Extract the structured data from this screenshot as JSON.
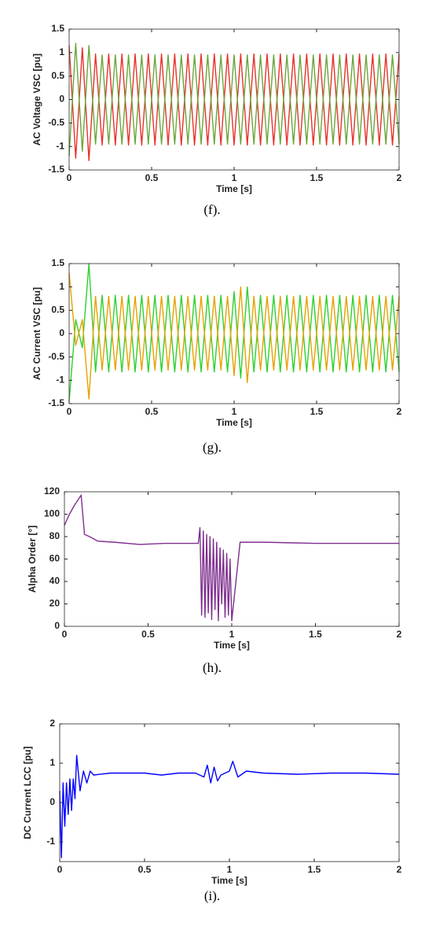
{
  "chart_data": [
    {
      "type": "line",
      "caption": "(f).",
      "xlabel": "Time [s]",
      "ylabel": "AC Voltage VSC [pu]",
      "xlim": [
        0,
        2
      ],
      "xticks": [
        0,
        0.5,
        1,
        1.5,
        2
      ],
      "ylim": [
        -1.5,
        1.5
      ],
      "yticks": [
        -1.5,
        -1,
        -0.5,
        0,
        0.5,
        1,
        1.5
      ],
      "x": [
        0,
        0.04,
        0.08,
        0.12,
        0.16,
        0.2,
        0.24,
        0.28,
        0.32,
        0.36,
        0.4,
        0.44,
        0.48,
        0.52,
        0.56,
        0.6,
        0.64,
        0.68,
        0.72,
        0.76,
        0.8,
        0.84,
        0.88,
        0.92,
        0.96,
        1,
        1.04,
        1.08,
        1.12,
        1.16,
        1.2,
        1.24,
        1.28,
        1.32,
        1.36,
        1.4,
        1.44,
        1.48,
        1.52,
        1.56,
        1.6,
        1.64,
        1.68,
        1.72,
        1.76,
        1.8,
        1.84,
        1.88,
        1.92,
        1.96,
        2
      ],
      "series": [
        {
          "color": "#e8312a",
          "values": [
            1.15,
            -1.25,
            1.1,
            -1.3,
            0.97,
            -0.97,
            0.97,
            -0.97,
            0.97,
            -0.97,
            0.97,
            -0.97,
            0.97,
            -0.97,
            0.97,
            -0.97,
            0.97,
            -0.97,
            0.97,
            -0.97,
            0.97,
            -0.97,
            0.97,
            -0.97,
            0.97,
            -0.97,
            0.97,
            -0.97,
            0.97,
            -0.97,
            0.97,
            -0.97,
            0.97,
            -0.97,
            0.97,
            -0.97,
            0.97,
            -0.97,
            0.97,
            -0.97,
            0.97,
            -0.97,
            0.97,
            -0.97,
            0.97,
            -0.97,
            0.97,
            -0.97,
            0.97,
            -0.97,
            0.97
          ]
        },
        {
          "color": "#6aa63a",
          "values": [
            -1.2,
            1.2,
            -1.1,
            1.15,
            -0.95,
            0.95,
            -0.95,
            0.95,
            -0.95,
            0.95,
            -0.95,
            0.95,
            -0.95,
            0.95,
            -0.95,
            0.95,
            -0.95,
            0.95,
            -0.95,
            0.95,
            -0.95,
            0.95,
            -0.95,
            0.95,
            -0.95,
            0.95,
            -0.95,
            0.95,
            -0.95,
            0.95,
            -0.95,
            0.95,
            -0.95,
            0.95,
            -0.95,
            0.95,
            -0.95,
            0.95,
            -0.95,
            0.95,
            -0.95,
            0.95,
            -0.95,
            0.95,
            -0.95,
            0.95,
            -0.95,
            0.95,
            -0.95,
            0.95,
            -0.95
          ]
        }
      ]
    },
    {
      "type": "line",
      "caption": "(g).",
      "xlabel": "Time [s]",
      "ylabel": "AC Current VSC [pu]",
      "xlim": [
        0,
        2
      ],
      "xticks": [
        0,
        0.5,
        1,
        1.5,
        2
      ],
      "ylim": [
        -1.5,
        1.5
      ],
      "yticks": [
        -1.5,
        -1,
        -0.5,
        0,
        0.5,
        1,
        1.5
      ],
      "x": [
        0,
        0.04,
        0.08,
        0.12,
        0.16,
        0.2,
        0.24,
        0.28,
        0.32,
        0.36,
        0.4,
        0.44,
        0.48,
        0.52,
        0.56,
        0.6,
        0.64,
        0.68,
        0.72,
        0.76,
        0.8,
        0.84,
        0.88,
        0.92,
        0.96,
        1,
        1.04,
        1.08,
        1.12,
        1.16,
        1.2,
        1.24,
        1.28,
        1.32,
        1.36,
        1.4,
        1.44,
        1.48,
        1.52,
        1.56,
        1.6,
        1.64,
        1.68,
        1.72,
        1.76,
        1.8,
        1.84,
        1.88,
        1.92,
        1.96,
        2
      ],
      "series": [
        {
          "color": "#2ed12e",
          "values": [
            -1.45,
            0.3,
            -0.3,
            1.5,
            -0.82,
            0.82,
            -0.82,
            0.82,
            -0.82,
            0.82,
            -0.82,
            0.82,
            -0.82,
            0.82,
            -0.82,
            0.82,
            -0.82,
            0.82,
            -0.82,
            0.82,
            -0.82,
            0.82,
            -0.82,
            0.82,
            -0.82,
            0.9,
            -0.95,
            1.0,
            -0.82,
            0.82,
            -0.82,
            0.82,
            -0.82,
            0.82,
            -0.82,
            0.82,
            -0.82,
            0.82,
            -0.82,
            0.82,
            -0.82,
            0.82,
            -0.82,
            0.82,
            -0.82,
            0.82,
            -0.82,
            0.82,
            -0.82,
            0.82,
            -0.82
          ]
        },
        {
          "color": "#e6a100",
          "values": [
            1.3,
            -0.25,
            0.3,
            -1.4,
            0.8,
            -0.78,
            0.8,
            -0.78,
            0.8,
            -0.78,
            0.8,
            -0.78,
            0.8,
            -0.78,
            0.8,
            -0.78,
            0.8,
            -0.78,
            0.8,
            -0.78,
            0.8,
            -0.78,
            0.8,
            -0.78,
            0.8,
            -0.9,
            1.0,
            -1.05,
            0.8,
            -0.78,
            0.8,
            -0.78,
            0.8,
            -0.78,
            0.8,
            -0.78,
            0.8,
            -0.78,
            0.8,
            -0.78,
            0.8,
            -0.78,
            0.8,
            -0.78,
            0.8,
            -0.78,
            0.8,
            -0.78,
            0.8,
            -0.78,
            0.8
          ]
        }
      ]
    },
    {
      "type": "line",
      "caption": "(h).",
      "xlabel": "Time [s]",
      "ylabel": "Alpha Order [°]",
      "xlim": [
        0,
        2
      ],
      "xticks": [
        0,
        0.5,
        1,
        1.5,
        2
      ],
      "ylim": [
        0,
        120
      ],
      "yticks": [
        0,
        20,
        40,
        60,
        80,
        100,
        120
      ],
      "x": [
        0,
        0.03,
        0.06,
        0.1,
        0.12,
        0.15,
        0.2,
        0.3,
        0.45,
        0.6,
        0.8,
        0.81,
        0.82,
        0.83,
        0.84,
        0.85,
        0.86,
        0.87,
        0.88,
        0.89,
        0.9,
        0.91,
        0.92,
        0.93,
        0.94,
        0.95,
        0.96,
        0.97,
        0.98,
        0.99,
        1,
        1.05,
        1.2,
        1.5,
        1.8,
        2
      ],
      "series": [
        {
          "color": "#7e2f8e",
          "values": [
            90,
            100,
            108,
            117,
            82,
            80,
            76,
            75,
            73,
            74,
            74,
            88,
            10,
            85,
            8,
            82,
            12,
            80,
            6,
            78,
            15,
            75,
            5,
            70,
            20,
            68,
            8,
            65,
            10,
            60,
            5,
            75,
            75,
            74,
            74,
            74
          ]
        }
      ]
    },
    {
      "type": "line",
      "caption": "(i).",
      "xlabel": "Time [s]",
      "ylabel": "DC Current LCC [pu]",
      "xlim": [
        0,
        2
      ],
      "xticks": [
        0,
        0.5,
        1,
        1.5,
        2
      ],
      "ylim": [
        -1.5,
        2
      ],
      "yticks": [
        -1,
        0,
        1,
        2
      ],
      "x": [
        0,
        0.01,
        0.02,
        0.03,
        0.04,
        0.05,
        0.06,
        0.07,
        0.08,
        0.09,
        0.1,
        0.12,
        0.14,
        0.16,
        0.18,
        0.2,
        0.3,
        0.4,
        0.5,
        0.6,
        0.7,
        0.8,
        0.85,
        0.87,
        0.89,
        0.91,
        0.93,
        0.95,
        1,
        1.02,
        1.05,
        1.1,
        1.2,
        1.4,
        1.6,
        1.8,
        2
      ],
      "series": [
        {
          "color": "#0000ff",
          "values": [
            0.3,
            -1.4,
            0.5,
            -0.6,
            0.5,
            -0.3,
            0.6,
            -0.2,
            0.6,
            0.1,
            1.2,
            0.3,
            0.8,
            0.5,
            0.8,
            0.7,
            0.75,
            0.75,
            0.75,
            0.7,
            0.75,
            0.75,
            0.65,
            0.95,
            0.5,
            0.9,
            0.55,
            0.7,
            0.8,
            1.05,
            0.65,
            0.8,
            0.75,
            0.72,
            0.75,
            0.75,
            0.72
          ]
        }
      ]
    }
  ]
}
